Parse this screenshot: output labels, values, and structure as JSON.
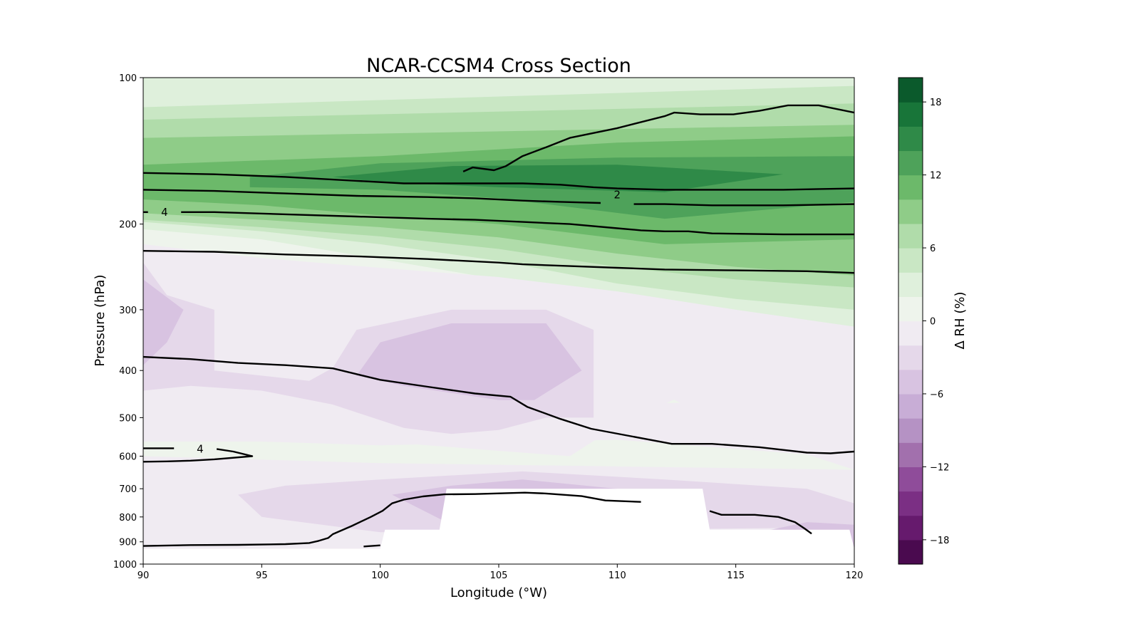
{
  "chart_data": {
    "type": "contour",
    "title": "NCAR-CCSM4 Cross Section",
    "xlabel": "Longitude (°W)",
    "ylabel": "Pressure (hPa)",
    "xlim": [
      90,
      120
    ],
    "ylim": [
      1000,
      100
    ],
    "yscale": "log",
    "x_ticks": [
      90,
      95,
      100,
      105,
      110,
      115,
      120
    ],
    "y_ticks": [
      100,
      200,
      300,
      400,
      500,
      600,
      700,
      800,
      900,
      1000
    ],
    "colorbar": {
      "label": "Δ RH (%)",
      "levels": [
        -20,
        -18,
        -16,
        -14,
        -12,
        -10,
        -8,
        -6,
        -4,
        -2,
        0,
        2,
        4,
        6,
        8,
        10,
        12,
        14,
        16,
        18,
        20
      ],
      "tick_values": [
        -18,
        -12,
        -6,
        0,
        6,
        12,
        18
      ],
      "tick_labels": [
        "−18",
        "−12",
        "−6",
        "0",
        "6",
        "12",
        "18"
      ],
      "colors": [
        "#4a0a4f",
        "#661a6d",
        "#7b2f84",
        "#8f4c9a",
        "#a270ad",
        "#b592c4",
        "#c8add6",
        "#d8c3e1",
        "#e5d8ea",
        "#f0ebf2",
        "#eef4ec",
        "#dff0dc",
        "#c9e7c4",
        "#b0dcaa",
        "#8fcc88",
        "#6cb96a",
        "#4ea25a",
        "#2f8a48",
        "#187539",
        "#0b5a2c"
      ]
    },
    "contour_labels": [
      {
        "text": "4",
        "x": 90.9,
        "p": 189
      },
      {
        "text": "2",
        "x": 110.0,
        "p": 174
      },
      {
        "text": "4",
        "x": 92.4,
        "p": 580
      }
    ],
    "contour_lines": [
      [
        [
          103.5,
          156
        ],
        [
          103.9,
          153
        ],
        [
          104.8,
          155
        ],
        [
          105.3,
          152
        ],
        [
          106,
          145
        ],
        [
          107,
          139
        ],
        [
          108,
          133
        ],
        [
          110,
          127
        ],
        [
          112,
          120
        ],
        [
          112.4,
          118
        ],
        [
          113.5,
          119
        ],
        [
          114.9,
          119
        ],
        [
          116,
          117
        ],
        [
          117.2,
          114
        ],
        [
          118.5,
          114
        ],
        [
          120,
          118
        ]
      ],
      [
        [
          90,
          157
        ],
        [
          93,
          158
        ],
        [
          96,
          160
        ],
        [
          99,
          163
        ],
        [
          101,
          165
        ],
        [
          103,
          165
        ],
        [
          106,
          165
        ],
        [
          107.6,
          166
        ],
        [
          109,
          168
        ],
        [
          110,
          169
        ],
        [
          112,
          170
        ],
        [
          115,
          170
        ],
        [
          117,
          170
        ],
        [
          120,
          169
        ]
      ],
      [
        [
          90,
          170
        ],
        [
          93,
          171
        ],
        [
          96,
          173
        ],
        [
          99,
          175
        ],
        [
          102,
          176
        ],
        [
          104,
          177
        ],
        [
          106,
          179
        ],
        [
          107.6,
          180
        ],
        [
          109.3,
          181
        ]
      ],
      [
        [
          110.7,
          182
        ],
        [
          112,
          182
        ],
        [
          114,
          183
        ],
        [
          117,
          183
        ],
        [
          120,
          182
        ]
      ],
      [
        [
          90,
          189
        ],
        [
          90.2,
          189
        ]
      ],
      [
        [
          91.6,
          189
        ],
        [
          93,
          189
        ],
        [
          96,
          191
        ],
        [
          99,
          193
        ],
        [
          102,
          195
        ],
        [
          104,
          196
        ],
        [
          106,
          198
        ],
        [
          108,
          200
        ],
        [
          110,
          204
        ],
        [
          111,
          206
        ],
        [
          112,
          207
        ],
        [
          113,
          207
        ],
        [
          114,
          209
        ],
        [
          117,
          210
        ],
        [
          120,
          210
        ]
      ],
      [
        [
          90,
          227
        ],
        [
          93,
          228
        ],
        [
          96,
          231
        ],
        [
          99,
          233
        ],
        [
          102,
          236
        ],
        [
          105,
          240
        ],
        [
          106,
          242
        ],
        [
          108,
          244
        ],
        [
          110,
          246
        ],
        [
          112,
          248
        ],
        [
          115,
          249
        ],
        [
          118,
          250
        ],
        [
          120,
          252
        ]
      ],
      [
        [
          90,
          375
        ],
        [
          92,
          379
        ],
        [
          94,
          386
        ],
        [
          96,
          390
        ],
        [
          98,
          396
        ],
        [
          100,
          418
        ],
        [
          102,
          432
        ],
        [
          104,
          446
        ],
        [
          105.5,
          453
        ],
        [
          106.2,
          475
        ],
        [
          107.6,
          503
        ],
        [
          108.9,
          527
        ],
        [
          110.5,
          545
        ],
        [
          112.3,
          566
        ],
        [
          114,
          566
        ],
        [
          116,
          575
        ],
        [
          118,
          590
        ],
        [
          119,
          592
        ],
        [
          120,
          587
        ]
      ],
      [
        [
          90,
          578
        ],
        [
          91.3,
          578
        ]
      ],
      [
        [
          93.1,
          580
        ],
        [
          93.8,
          587
        ],
        [
          94.6,
          600
        ],
        [
          93,
          609
        ],
        [
          92,
          613
        ],
        [
          91,
          615
        ],
        [
          90,
          616
        ]
      ],
      [
        [
          90,
          918
        ],
        [
          92,
          914
        ],
        [
          94,
          913
        ],
        [
          96,
          910
        ],
        [
          97,
          905
        ],
        [
          97.4,
          896
        ],
        [
          97.8,
          884
        ],
        [
          98,
          868
        ],
        [
          98.8,
          835
        ],
        [
          99.6,
          800
        ],
        [
          100.1,
          777
        ],
        [
          100.5,
          750
        ],
        [
          101,
          737
        ],
        [
          101.8,
          726
        ],
        [
          102.7,
          719
        ],
        [
          104,
          718
        ],
        [
          106.1,
          713
        ],
        [
          107,
          716
        ],
        [
          108.5,
          725
        ],
        [
          109.5,
          740
        ],
        [
          111,
          745
        ]
      ],
      [
        [
          99.3,
          920
        ],
        [
          100,
          915
        ]
      ],
      [
        [
          113.9,
          778
        ],
        [
          114.4,
          792
        ],
        [
          115.8,
          792
        ],
        [
          116.8,
          800
        ],
        [
          117.5,
          820
        ],
        [
          117.9,
          845
        ],
        [
          118.2,
          866
        ]
      ]
    ],
    "filled_regions": [
      {
        "level": 6,
        "points": [
          [
            90,
            100
          ],
          [
            120,
            100
          ],
          [
            120,
            118
          ],
          [
            110,
            125
          ],
          [
            100,
            131
          ],
          [
            90,
            138
          ]
        ]
      },
      {
        "level": 0,
        "points": [
          [
            90,
            195
          ],
          [
            100,
            200
          ],
          [
            110,
            218
          ],
          [
            120,
            238
          ],
          [
            120,
            455
          ],
          [
            110,
            470
          ],
          [
            100,
            460
          ],
          [
            95,
            560
          ],
          [
            100,
            570
          ],
          [
            110,
            555
          ],
          [
            118,
            595
          ],
          [
            120,
            640
          ],
          [
            110,
            630
          ],
          [
            100,
            620
          ],
          [
            90,
            600
          ]
        ]
      },
      {
        "level": 2,
        "points": [
          [
            90,
            100
          ],
          [
            120,
            100
          ],
          [
            120,
            335
          ],
          [
            115,
            322
          ],
          [
            110,
            300
          ],
          [
            105,
            260
          ],
          [
            100,
            236
          ],
          [
            95,
            215
          ],
          [
            90,
            205
          ]
        ]
      },
      {
        "level": 4,
        "points": [
          [
            90,
            115
          ],
          [
            120,
            104
          ],
          [
            120,
            300
          ],
          [
            115,
            285
          ],
          [
            110,
            265
          ],
          [
            105,
            238
          ],
          [
            100,
            220
          ],
          [
            95,
            207
          ],
          [
            90,
            198
          ]
        ]
      },
      {
        "level": 6,
        "points": [
          [
            90,
            122
          ],
          [
            120,
            113
          ],
          [
            120,
            270
          ],
          [
            115,
            260
          ],
          [
            110,
            245
          ],
          [
            105,
            225
          ],
          [
            100,
            212
          ],
          [
            95,
            203
          ],
          [
            90,
            196
          ]
        ]
      },
      {
        "level": 8,
        "points": [
          [
            90,
            133
          ],
          [
            120,
            125
          ],
          [
            120,
            255
          ],
          [
            115,
            245
          ],
          [
            110,
            230
          ],
          [
            105,
            213
          ],
          [
            100,
            203
          ],
          [
            95,
            196
          ],
          [
            90,
            190
          ]
        ]
      },
      {
        "level": 10,
        "points": [
          [
            90,
            151
          ],
          [
            100,
            145
          ],
          [
            110,
            136
          ],
          [
            120,
            132
          ],
          [
            120,
            215
          ],
          [
            112,
            220
          ],
          [
            105,
            200
          ],
          [
            100,
            192
          ],
          [
            95,
            183
          ],
          [
            90,
            178
          ]
        ]
      },
      {
        "level": 12,
        "points": [
          [
            94.5,
            160
          ],
          [
            100,
            150
          ],
          [
            110,
            146
          ],
          [
            120,
            145
          ],
          [
            120,
            180
          ],
          [
            112,
            195
          ],
          [
            105,
            177
          ],
          [
            100,
            170
          ],
          [
            94.5,
            168
          ]
        ]
      },
      {
        "level": 14,
        "points": [
          [
            98,
            160
          ],
          [
            103,
            152
          ],
          [
            110,
            151
          ],
          [
            117,
            158
          ],
          [
            112,
            172
          ],
          [
            105,
            168
          ],
          [
            100,
            164
          ]
        ]
      },
      {
        "level": -2,
        "points": [
          [
            90,
            220
          ],
          [
            95,
            235
          ],
          [
            100,
            246
          ],
          [
            105,
            257
          ],
          [
            110,
            275
          ],
          [
            115,
            300
          ],
          [
            120,
            325
          ],
          [
            120,
            440
          ],
          [
            113,
            445
          ],
          [
            110,
            520
          ],
          [
            108,
            600
          ],
          [
            105,
            585
          ],
          [
            100,
            560
          ],
          [
            95,
            560
          ],
          [
            90,
            560
          ]
        ]
      },
      {
        "level": -2,
        "points": [
          [
            90,
            630
          ],
          [
            100,
            640
          ],
          [
            110,
            640
          ],
          [
            120,
            660
          ],
          [
            120,
            1000
          ],
          [
            90,
            1000
          ]
        ]
      },
      {
        "level": -2,
        "points": [
          [
            112,
            430
          ],
          [
            116,
            410
          ],
          [
            120,
            420
          ],
          [
            120,
            460
          ],
          [
            118,
            560
          ],
          [
            116,
            560
          ],
          [
            114,
            500
          ],
          [
            112,
            450
          ]
        ]
      },
      {
        "level": -4,
        "points": [
          [
            90,
            240
          ],
          [
            91,
            280
          ],
          [
            93,
            300
          ],
          [
            93,
            400
          ],
          [
            97,
            420
          ],
          [
            98,
            395
          ],
          [
            99,
            330
          ],
          [
            103,
            300
          ],
          [
            107,
            300
          ],
          [
            109,
            330
          ],
          [
            109,
            500
          ],
          [
            107,
            500
          ],
          [
            105,
            530
          ],
          [
            103,
            540
          ],
          [
            101,
            525
          ],
          [
            98,
            470
          ],
          [
            95,
            440
          ],
          [
            92,
            430
          ],
          [
            90,
            440
          ]
        ]
      },
      {
        "level": -4,
        "points": [
          [
            94,
            720
          ],
          [
            96,
            690
          ],
          [
            100,
            670
          ],
          [
            106,
            645
          ],
          [
            112,
            670
          ],
          [
            118,
            700
          ],
          [
            120,
            750
          ],
          [
            120,
            840
          ],
          [
            100,
            860
          ],
          [
            95,
            800
          ]
        ]
      },
      {
        "level": -6,
        "points": [
          [
            90,
            260
          ],
          [
            91.7,
            300
          ],
          [
            91,
            350
          ],
          [
            90,
            390
          ]
        ]
      },
      {
        "level": -6,
        "points": [
          [
            100,
            350
          ],
          [
            103,
            320
          ],
          [
            107,
            320
          ],
          [
            108.5,
            400
          ],
          [
            106.5,
            460
          ],
          [
            105,
            460
          ],
          [
            101,
            430
          ],
          [
            99,
            410
          ]
        ]
      },
      {
        "level": -6,
        "points": [
          [
            100.5,
            720
          ],
          [
            103,
            690
          ],
          [
            106,
            670
          ],
          [
            110,
            700
          ],
          [
            108,
            800
          ],
          [
            103,
            830
          ]
        ]
      },
      {
        "level": -6,
        "points": [
          [
            115,
            880
          ],
          [
            118,
            820
          ],
          [
            120,
            830
          ],
          [
            120,
            930
          ],
          [
            116,
            930
          ]
        ]
      }
    ],
    "terrain_mask": [
      [
        90,
        930
      ],
      [
        100,
        930
      ],
      [
        100.2,
        850
      ],
      [
        102.5,
        850
      ],
      [
        102.8,
        700
      ],
      [
        113.6,
        700
      ],
      [
        113.9,
        850
      ],
      [
        119.8,
        850
      ],
      [
        120,
        930
      ],
      [
        120,
        1000
      ],
      [
        90,
        1000
      ]
    ]
  }
}
